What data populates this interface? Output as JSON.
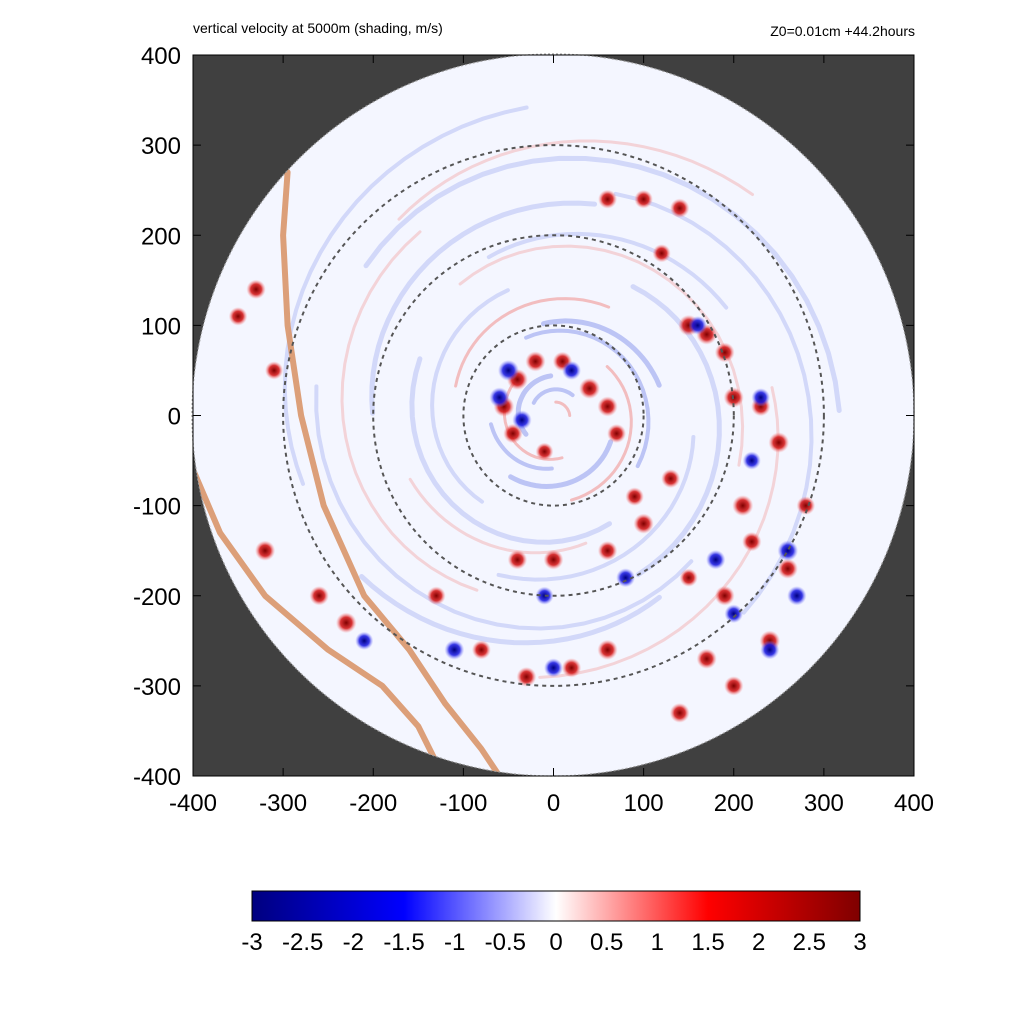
{
  "chart_data": {
    "type": "heatmap",
    "title": "vertical velocity at 5000m (shading, m/s)",
    "subtitle": "Z0=0.01cm  +44.2hours",
    "xlabel": "",
    "ylabel": "",
    "xlim": [
      -400,
      400
    ],
    "ylim": [
      -400,
      400
    ],
    "x_ticks": [
      "-400",
      "-300",
      "-200",
      "-100",
      "0",
      "100",
      "200",
      "300",
      "400"
    ],
    "y_ticks": [
      "400",
      "300",
      "200",
      "100",
      "0",
      "-100",
      "-200",
      "-300",
      "-400"
    ],
    "domain_radius": 400,
    "range_rings_radius": [
      100,
      200,
      300
    ],
    "colorbar": {
      "range": [
        -3,
        3
      ],
      "ticks": [
        "-3",
        "-2.5",
        "-2",
        "-1.5",
        "-1",
        "-0.5",
        "0",
        "0.5",
        "1",
        "1.5",
        "2",
        "2.5",
        "3"
      ],
      "colors": [
        "#00007f",
        "#0000ff",
        "#ffffff",
        "#ff0000",
        "#7f0000"
      ]
    },
    "coastlines": [
      {
        "points": [
          [
            -295,
            270
          ],
          [
            -300,
            200
          ],
          [
            -295,
            100
          ],
          [
            -280,
            0
          ],
          [
            -255,
            -100
          ],
          [
            -210,
            -200
          ],
          [
            -160,
            -260
          ],
          [
            -120,
            -320
          ],
          [
            -80,
            -370
          ],
          [
            -60,
            -400
          ]
        ]
      },
      {
        "points": [
          [
            -400,
            -60
          ],
          [
            -370,
            -130
          ],
          [
            -320,
            -200
          ],
          [
            -250,
            -260
          ],
          [
            -190,
            -300
          ],
          [
            -150,
            -345
          ],
          [
            -130,
            -385
          ]
        ]
      }
    ],
    "updraft_cells": [
      [
        -40,
        40,
        3
      ],
      [
        -20,
        60,
        2.8
      ],
      [
        -55,
        10,
        2.9
      ],
      [
        -45,
        -20,
        2.6
      ],
      [
        40,
        30,
        3
      ],
      [
        60,
        10,
        2.8
      ],
      [
        70,
        -20,
        2.5
      ],
      [
        10,
        60,
        2.6
      ],
      [
        -10,
        -40,
        2.2
      ],
      [
        150,
        100,
        3
      ],
      [
        170,
        90,
        2.9
      ],
      [
        190,
        70,
        2.7
      ],
      [
        200,
        20,
        2.8
      ],
      [
        230,
        10,
        2.6
      ],
      [
        250,
        -30,
        2.9
      ],
      [
        210,
        -100,
        3
      ],
      [
        220,
        -140,
        2.6
      ],
      [
        260,
        -170,
        2.8
      ],
      [
        190,
        -200,
        2.7
      ],
      [
        240,
        -250,
        2.9
      ],
      [
        170,
        -270,
        2.8
      ],
      [
        200,
        -300,
        2.6
      ],
      [
        140,
        -330,
        2.7
      ],
      [
        60,
        -260,
        2.8
      ],
      [
        20,
        -280,
        2.6
      ],
      [
        -30,
        -290,
        2.7
      ],
      [
        -80,
        -260,
        2.5
      ],
      [
        -230,
        -230,
        2.9
      ],
      [
        -260,
        -200,
        2.6
      ],
      [
        -320,
        -150,
        2.8
      ],
      [
        -130,
        -200,
        2.4
      ],
      [
        60,
        -150,
        2.6
      ],
      [
        100,
        -120,
        2.8
      ],
      [
        0,
        -160,
        2.7
      ],
      [
        -40,
        -160,
        2.6
      ],
      [
        130,
        -70,
        2.5
      ],
      [
        90,
        -90,
        2.4
      ],
      [
        140,
        230,
        2.6
      ],
      [
        100,
        240,
        2.4
      ],
      [
        60,
        240,
        2.5
      ],
      [
        -330,
        140,
        2.6
      ],
      [
        -350,
        110,
        2.4
      ],
      [
        -310,
        50,
        2.3
      ],
      [
        120,
        180,
        2.3
      ],
      [
        280,
        -100,
        2.4
      ],
      [
        150,
        -180,
        2.3
      ]
    ],
    "downdraft_cells": [
      [
        -50,
        50,
        -3
      ],
      [
        -60,
        20,
        -2.8
      ],
      [
        -35,
        -5,
        -2.6
      ],
      [
        20,
        50,
        -2.5
      ],
      [
        260,
        -150,
        -2.9
      ],
      [
        270,
        -200,
        -2.6
      ],
      [
        240,
        -260,
        -2.5
      ],
      [
        200,
        -220,
        -2.4
      ],
      [
        -110,
        -260,
        -2.7
      ],
      [
        0,
        -280,
        -2.5
      ],
      [
        -10,
        -200,
        -2.3
      ],
      [
        160,
        100,
        -2.4
      ],
      [
        180,
        -160,
        -2.6
      ],
      [
        220,
        -50,
        -2.3
      ],
      [
        230,
        20,
        -2.4
      ],
      [
        -210,
        -250,
        -2.3
      ],
      [
        80,
        -180,
        -2.5
      ]
    ]
  }
}
